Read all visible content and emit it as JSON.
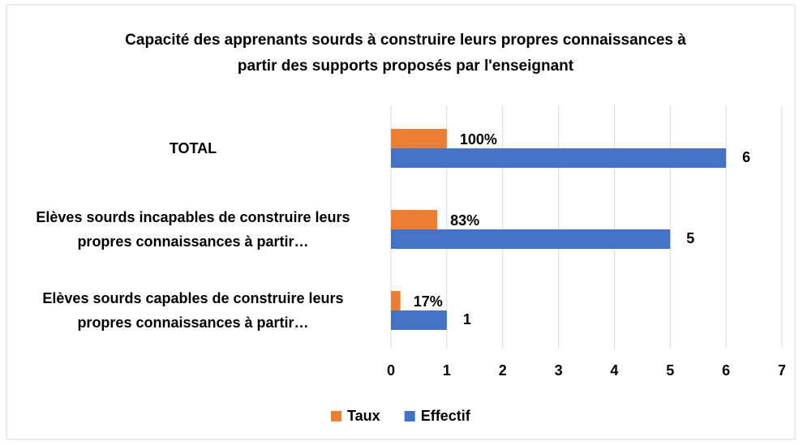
{
  "chart_data": {
    "type": "barh",
    "title": "Capacité des apprenants sourds à construire leurs propres connaissances à partir des supports proposés par l'enseignant",
    "categories": [
      "TOTAL",
      "Elèves sourds incapables de construire leurs propres connaissances à partir…",
      "Elèves sourds capables de construire leurs propres connaissances à partir…"
    ],
    "series": [
      {
        "name": "Taux",
        "color": "#ed7d31",
        "values": [
          1,
          0.83,
          0.17
        ],
        "value_labels": [
          "100%",
          "83%",
          "17%"
        ]
      },
      {
        "name": "Effectif",
        "color": "#4472c4",
        "values": [
          6,
          5,
          1
        ]
      }
    ],
    "xlim": [
      0,
      7
    ],
    "xticks": [
      0,
      1,
      2,
      3,
      4,
      5,
      6,
      7
    ],
    "grid": true,
    "legend": "bottom"
  }
}
